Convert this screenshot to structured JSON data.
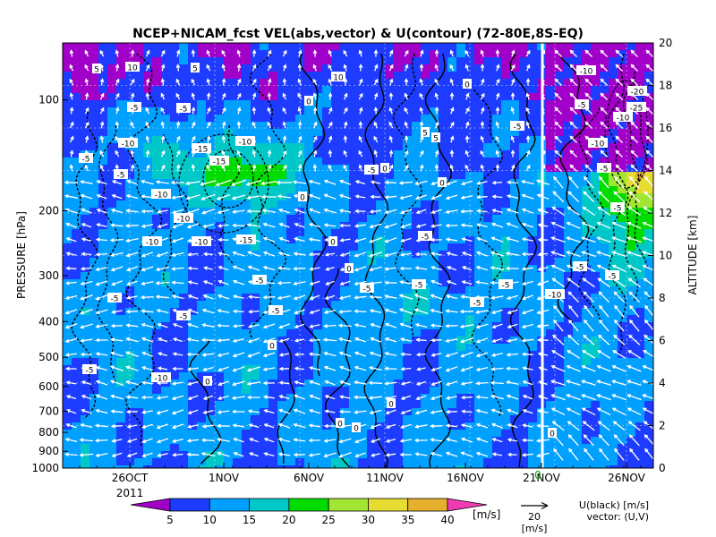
{
  "chart_data": {
    "type": "heatmap",
    "title": "NCEP+NICAM_fcst VEL(abs,vector) & U(contour)  (72-80E,8S-EQ)",
    "left_axis": {
      "label": "PRESSURE [hPa]",
      "ticks": [
        "100",
        "200",
        "300",
        "400",
        "500",
        "600",
        "700",
        "800",
        "900",
        "1000"
      ],
      "range": [
        1000,
        70
      ],
      "scale": "log"
    },
    "right_axis": {
      "label": "ALTITUDE [km]",
      "ticks": [
        "0",
        "2",
        "4",
        "6",
        "8",
        "10",
        "12",
        "14",
        "16",
        "18",
        "20"
      ],
      "range": [
        0,
        20
      ]
    },
    "x_axis": {
      "ticks": [
        "26OCT",
        "1NOV",
        "6NOV",
        "11NOV",
        "16NOV",
        "21NOV",
        "26NOV"
      ],
      "year_label": "2011",
      "marker_label": "0"
    },
    "colorbar": {
      "levels": [
        "5",
        "10",
        "15",
        "20",
        "25",
        "30",
        "35",
        "40"
      ],
      "colors": [
        "#a000c8",
        "#1e3cff",
        "#00a0ff",
        "#00c8c8",
        "#00dc00",
        "#a0e632",
        "#e6dc32",
        "#e6af2d",
        "#f08228",
        "#fa3c3c"
      ],
      "unit": "[m/s]"
    },
    "vector_reference": {
      "value": "20",
      "unit": "[m/s]"
    },
    "legend_note": {
      "line1": "U(black) [m/s]",
      "line2": "vector: (U,V)"
    },
    "contour_labels": [
      "5",
      "10",
      "5",
      "10",
      "-5",
      "-5",
      "0",
      "-10",
      "-15",
      "-10",
      "-5",
      "-10",
      "-15",
      "-10",
      "-15",
      "-10",
      "-5",
      "-5",
      "0",
      "0",
      "-5",
      "-5",
      "-5",
      "-10",
      "-5",
      "0",
      "-5",
      "-5",
      "0",
      "5",
      "5",
      "-5",
      "0",
      "-10",
      "-20",
      "-25",
      "-10",
      "-5",
      "-5",
      "0",
      "-5",
      "-5",
      "-10",
      "-5",
      "-10",
      "0",
      "0",
      "0",
      "0",
      "0",
      "-5",
      "-5",
      "-5",
      "-5",
      "0",
      "-10"
    ]
  }
}
